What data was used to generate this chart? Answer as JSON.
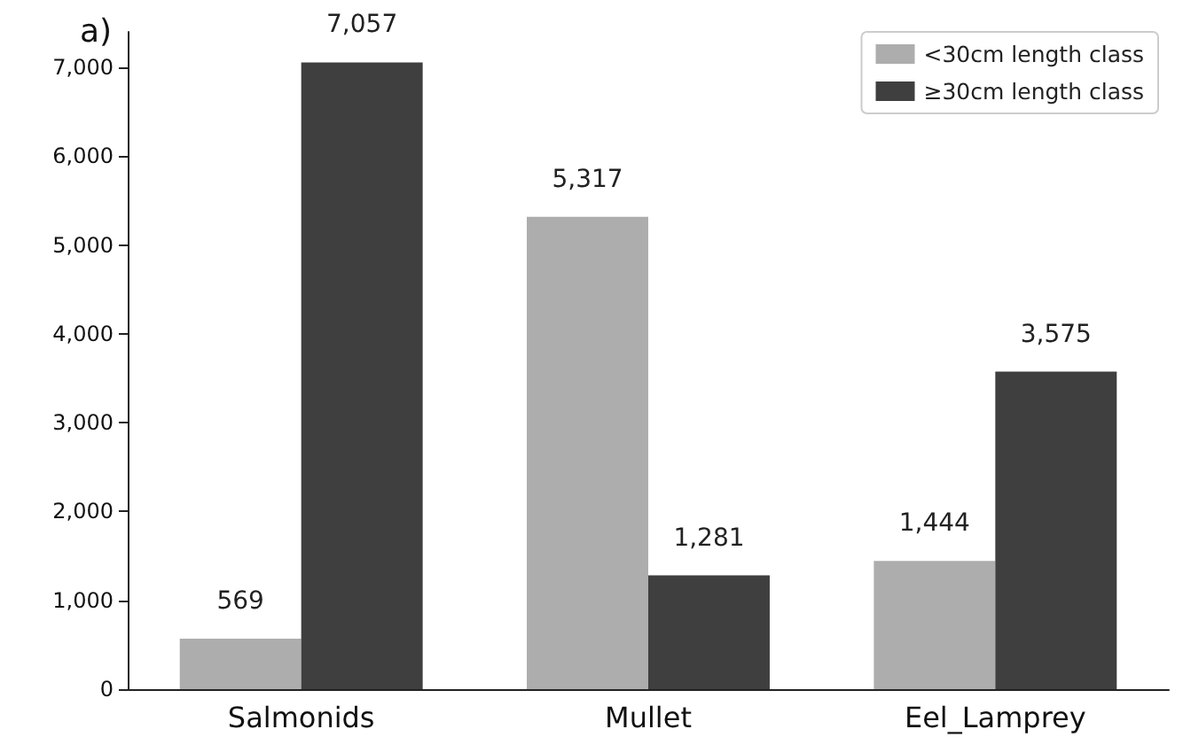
{
  "chart_data": {
    "type": "bar",
    "title": "a)",
    "categories": [
      "Salmonids",
      "Mullet",
      "Eel_Lamprey"
    ],
    "series": [
      {
        "name": "<30cm length class",
        "color": "#adadad",
        "values": [
          569,
          5317,
          1444
        ],
        "value_labels": [
          "569",
          "5,317",
          "1,444"
        ]
      },
      {
        "name": "≥30cm length class",
        "color": "#3f3f3f",
        "values": [
          7057,
          1281,
          3575
        ],
        "value_labels": [
          "7,057",
          "1,281",
          "3,575"
        ]
      }
    ],
    "ylim": [
      0,
      7400
    ],
    "yticks": [
      0,
      {
        "value": 1000,
        "label": "1,000"
      },
      {
        "value": 2000,
        "label": "2,000"
      },
      {
        "value": 3000,
        "label": "3,000"
      },
      {
        "value": 4000,
        "label": "4,000"
      },
      {
        "value": 5000,
        "label": "5,000"
      },
      {
        "value": 6000,
        "label": "6,000"
      },
      {
        "value": 7000,
        "label": "7,000"
      }
    ],
    "grid": false,
    "legend": "top right"
  }
}
